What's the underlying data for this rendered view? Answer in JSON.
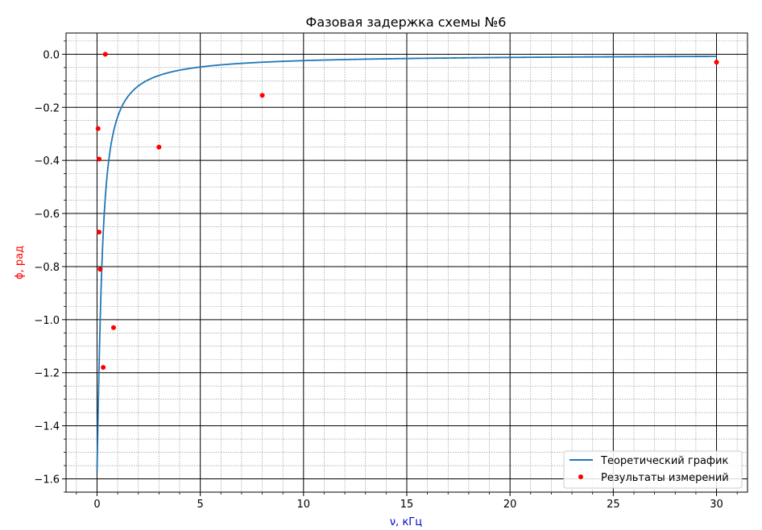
{
  "chart_data": {
    "type": "line",
    "title": "Фазовая задержка схемы №6",
    "xlabel": "ν, кГц",
    "ylabel": "ϕ, рад",
    "xlim": [
      -1.5,
      31.5
    ],
    "ylim": [
      -1.65,
      0.08
    ],
    "x_ticks": [
      0,
      5,
      10,
      15,
      20,
      25,
      30
    ],
    "x_tick_labels": [
      "0",
      "5",
      "10",
      "15",
      "20",
      "25",
      "30"
    ],
    "y_ticks": [
      0.0,
      -0.2,
      -0.4,
      -0.6,
      -0.8,
      -1.0,
      -1.2,
      -1.4,
      -1.6
    ],
    "y_tick_labels": [
      "0.0",
      "−0.2",
      "−0.4",
      "−0.6",
      "−0.8",
      "−1.0",
      "−1.2",
      "−1.4",
      "−1.6"
    ],
    "grid": true,
    "minor_grid": true,
    "legend_position": "bottom-right",
    "series": [
      {
        "name": "Теоретический график",
        "kind": "line",
        "color": "#1f77b4",
        "formula_tau": 0.2402,
        "x_range": [
          0.0,
          30.0
        ]
      },
      {
        "name": "Результаты измерений",
        "kind": "scatter",
        "color": "#ff0000",
        "points": [
          {
            "x": 0.05,
            "y": -0.28
          },
          {
            "x": 0.1,
            "y": -0.395
          },
          {
            "x": 0.1,
            "y": -0.67
          },
          {
            "x": 0.15,
            "y": -0.81
          },
          {
            "x": 0.3,
            "y": -1.18
          },
          {
            "x": 0.4,
            "y": 0.0
          },
          {
            "x": 0.8,
            "y": -1.03
          },
          {
            "x": 3.0,
            "y": -0.35
          },
          {
            "x": 8.0,
            "y": -0.155
          },
          {
            "x": 30.0,
            "y": -0.03
          }
        ]
      }
    ],
    "colors": {
      "axis_label_x": "#0000cc",
      "axis_label_y": "#ff0000",
      "major_grid": "#000000",
      "minor_grid": "#888888"
    }
  }
}
